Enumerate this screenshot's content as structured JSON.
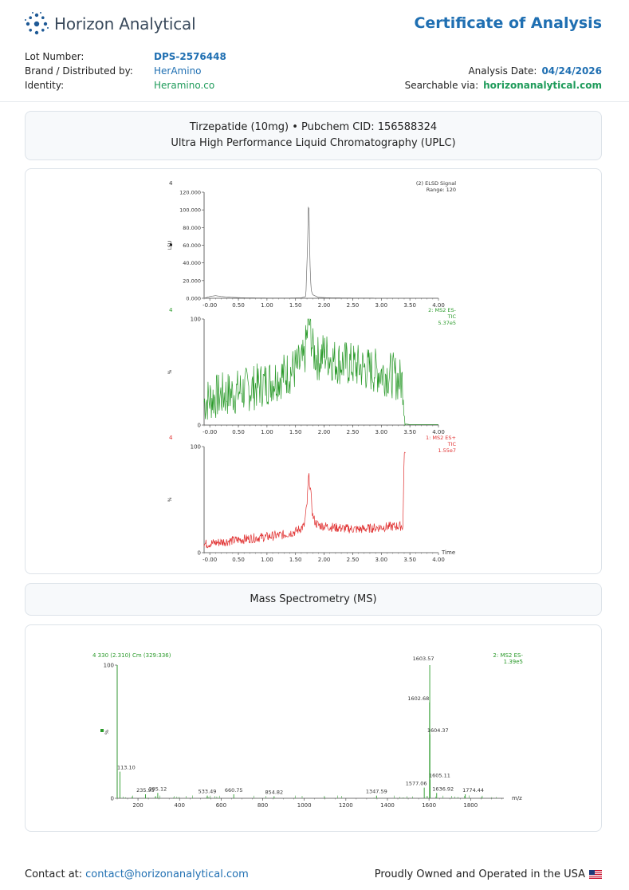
{
  "brand": {
    "name": "Horizon Analytical"
  },
  "document": {
    "title": "Certificate of Analysis"
  },
  "meta": {
    "lot_label": "Lot Number:",
    "lot_value": "DPS-2576448",
    "brand_label": "Brand / Distributed by:",
    "brand_value": "HerAmino",
    "identity_label": "Identity:",
    "identity_value": "Heramino.co",
    "date_label": "Analysis Date:",
    "date_value": "04/24/2026",
    "search_label": "Searchable via:",
    "search_value": "horizonanalytical.com"
  },
  "compound": {
    "line1": "Tirzepatide (10mg) • Pubchem CID: 156588324",
    "line2": "Ultra High Performance Liquid Chromatography (UPLC)"
  },
  "ms_section": {
    "title": "Mass Spectrometry (MS)"
  },
  "footer": {
    "contact_label": "Contact at:",
    "contact_email": "contact@horizonanalytical.com",
    "made_in": "Proudly Owned and Operated in the USA"
  },
  "colors": {
    "accent_blue": "#1f6fb2",
    "accent_green": "#1e9b5a",
    "trace_gray": "#707070",
    "trace_green": "#2a9a2a",
    "trace_red": "#e03030"
  },
  "chart_data": [
    {
      "type": "line",
      "corner_label": "4",
      "legend": [
        "(2) ELSD Signal",
        "Range: 120"
      ],
      "ylabel": "LSU",
      "xlim": [
        -0.1,
        4.0
      ],
      "ylim": [
        0,
        120
      ],
      "x_ticks": [
        "-0.00",
        "0.50",
        "1.00",
        "1.50",
        "2.00",
        "2.50",
        "3.00",
        "3.50",
        "4.00"
      ],
      "y_ticks": [
        "0.000",
        "20.000",
        "40.000",
        "60.000",
        "80.000",
        "100.000",
        "120.000"
      ],
      "series": [
        {
          "x": [
            -0.1,
            0.0,
            0.1,
            0.2,
            0.4,
            0.6,
            1.0,
            1.4,
            1.6,
            1.68,
            1.71,
            1.73,
            1.75,
            1.77,
            1.8,
            1.9,
            2.1,
            2.5,
            3.0,
            3.5,
            4.0
          ],
          "y": [
            0,
            2,
            3,
            2,
            1,
            0.5,
            0.3,
            0.3,
            0.5,
            2,
            60,
            119,
            45,
            10,
            4,
            1,
            0.5,
            0.3,
            0.2,
            0.2,
            0.2
          ]
        }
      ]
    },
    {
      "type": "line",
      "corner_label": "4",
      "legend": [
        "2: MS2 ES-",
        "TIC",
        "5.37e5"
      ],
      "ylabel": "%",
      "xlim": [
        -0.1,
        4.0
      ],
      "ylim": [
        0,
        100
      ],
      "x_ticks": [
        "-0.00",
        "0.50",
        "1.00",
        "1.50",
        "2.00",
        "2.50",
        "3.00",
        "3.50",
        "4.00"
      ],
      "y_ticks": [
        "0",
        "100"
      ],
      "series": [
        {
          "x": [
            -0.1,
            0.0,
            0.2,
            0.4,
            0.6,
            0.8,
            1.0,
            1.2,
            1.4,
            1.55,
            1.65,
            1.7,
            1.75,
            1.8,
            1.9,
            2.0,
            2.2,
            2.4,
            2.6,
            2.8,
            3.0,
            3.2,
            3.38,
            3.42,
            3.5,
            4.0
          ],
          "y": [
            22,
            25,
            28,
            30,
            33,
            36,
            40,
            45,
            50,
            55,
            60,
            85,
            98,
            70,
            62,
            68,
            60,
            58,
            55,
            52,
            50,
            47,
            40,
            1,
            0.5,
            0.5
          ]
        }
      ]
    },
    {
      "type": "line",
      "corner_label": "4",
      "legend": [
        "1: MS2 ES+",
        "TIC",
        "1.55e7"
      ],
      "ylabel": "%",
      "xlabel": "Time",
      "xlim": [
        -0.1,
        4.0
      ],
      "ylim": [
        0,
        100
      ],
      "x_ticks": [
        "-0.00",
        "0.50",
        "1.00",
        "1.50",
        "2.00",
        "2.50",
        "3.00",
        "3.50",
        "4.00"
      ],
      "y_ticks": [
        "0",
        "100"
      ],
      "series": [
        {
          "x": [
            -0.1,
            0.2,
            0.5,
            0.8,
            1.0,
            1.3,
            1.5,
            1.65,
            1.7,
            1.73,
            1.76,
            1.8,
            1.85,
            1.9,
            2.0,
            2.3,
            2.6,
            3.0,
            3.3,
            3.38,
            3.4,
            3.42
          ],
          "y": [
            8,
            10,
            12,
            14,
            15,
            17,
            20,
            25,
            45,
            73,
            60,
            35,
            28,
            26,
            25,
            23,
            22,
            24,
            25,
            25,
            98,
            90
          ]
        }
      ]
    },
    {
      "type": "bar",
      "corner_label": "4 330 (2.310) Cm (329:336)",
      "legend": [
        "2: MS2 ES-",
        "1.39e5"
      ],
      "ylabel": "%",
      "xlabel": "m/z",
      "xlim": [
        100,
        1960
      ],
      "ylim": [
        0,
        100
      ],
      "x_ticks": [
        "200",
        "400",
        "600",
        "800",
        "1000",
        "1200",
        "1400",
        "1600",
        "1800"
      ],
      "y_ticks": [
        "0",
        "100"
      ],
      "peaks_mz": [
        100,
        113.1,
        235.95,
        295.12,
        533.49,
        660.75,
        854.82,
        1347.59,
        1577.06,
        1602.68,
        1603.57,
        1604.37,
        1605.11,
        1636.92,
        1774.44
      ],
      "peaks_intensity": [
        100,
        20,
        3,
        4,
        2,
        3,
        1.5,
        2,
        8,
        72,
        100,
        48,
        14,
        4,
        3
      ],
      "peak_labels": [
        "",
        "113.10",
        "235.95",
        "295.12",
        "533.49",
        "660.75",
        "854.82",
        "1347.59",
        "1577.06",
        "1602.68",
        "1603.57",
        "1604.37",
        "1605.11",
        "1636.92",
        "1774.44"
      ]
    }
  ]
}
